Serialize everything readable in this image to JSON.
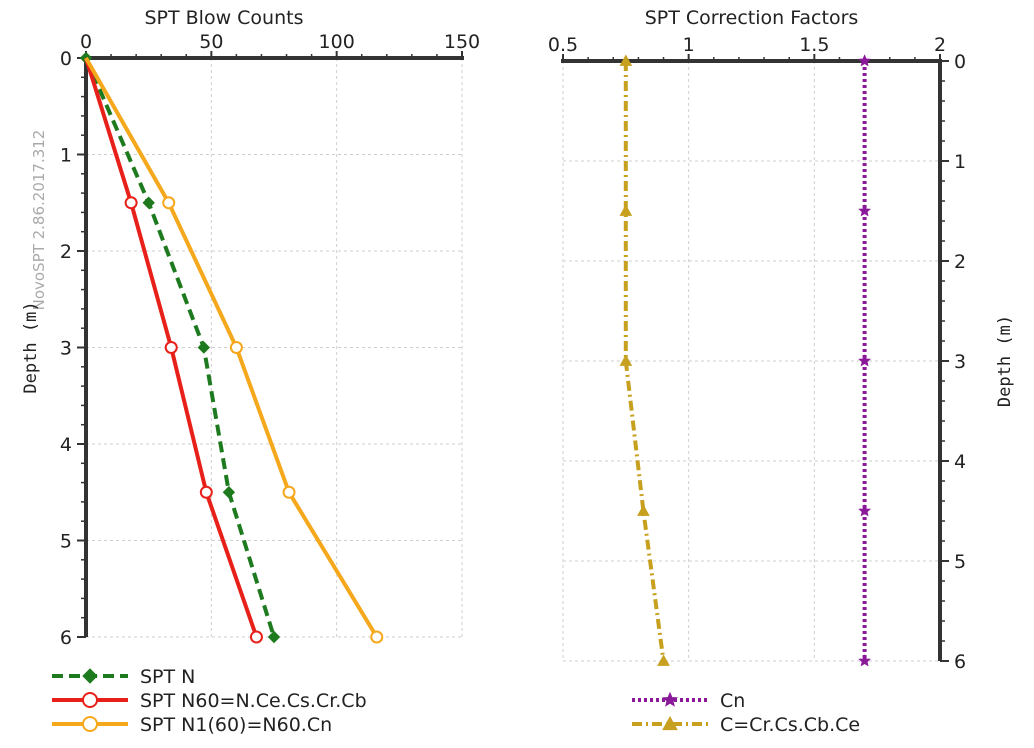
{
  "watermark": "NovoSPT 2.86.2017.312",
  "chart_data": [
    {
      "type": "line",
      "title": "SPT Blow Counts",
      "xlabel": "",
      "ylabel": "Depth (m)",
      "xlim": [
        0,
        150
      ],
      "ylim": [
        0,
        6
      ],
      "y_inverted": true,
      "x_axis_position": "top",
      "y_axis_position": "left",
      "xticks": [
        "0",
        "50",
        "100",
        "150"
      ],
      "yticks": [
        "0",
        "1",
        "2",
        "3",
        "4",
        "5",
        "6"
      ],
      "grid": true,
      "legend": "bottom",
      "series": [
        {
          "name": "SPT N",
          "color": "#1e7a1e",
          "style": "dashed",
          "marker": "diamond",
          "x": [
            0,
            25,
            47,
            57,
            75
          ],
          "y": [
            0,
            1.5,
            3,
            4.5,
            6
          ]
        },
        {
          "name": "SPT N60=N.Ce.Cs.Cr.Cb",
          "color": "#e8201a",
          "style": "solid",
          "marker": "open-circle",
          "x": [
            0,
            18,
            34,
            48,
            68
          ],
          "y": [
            0,
            1.5,
            3,
            4.5,
            6
          ]
        },
        {
          "name": "SPT N1(60)=N60.Cn",
          "color": "#f5a81c",
          "style": "solid",
          "marker": "open-circle",
          "x": [
            0,
            33,
            60,
            81,
            116
          ],
          "y": [
            0,
            1.5,
            3,
            4.5,
            6
          ]
        }
      ]
    },
    {
      "type": "line",
      "title": "SPT Correction Factors",
      "xlabel": "",
      "ylabel": "Depth (m)",
      "xlim": [
        0.5,
        2
      ],
      "ylim": [
        0,
        6
      ],
      "y_inverted": true,
      "x_axis_position": "top",
      "y_axis_position": "right",
      "xticks": [
        "0.5",
        "1",
        "1.5",
        "2"
      ],
      "yticks": [
        "0",
        "1",
        "2",
        "3",
        "4",
        "5",
        "6"
      ],
      "grid": true,
      "legend": "bottom",
      "series": [
        {
          "name": "Cn",
          "color": "#8a1a9a",
          "style": "dotted",
          "marker": "star",
          "x": [
            1.7,
            1.7,
            1.7,
            1.7,
            1.7
          ],
          "y": [
            0,
            1.5,
            3,
            4.5,
            6
          ]
        },
        {
          "name": "C=Cr.Cs.Cb.Ce",
          "color": "#c8a020",
          "style": "dashdot",
          "marker": "triangle",
          "x": [
            0.75,
            0.75,
            0.75,
            0.82,
            0.9
          ],
          "y": [
            0,
            1.5,
            3,
            4.5,
            6
          ]
        }
      ]
    }
  ]
}
